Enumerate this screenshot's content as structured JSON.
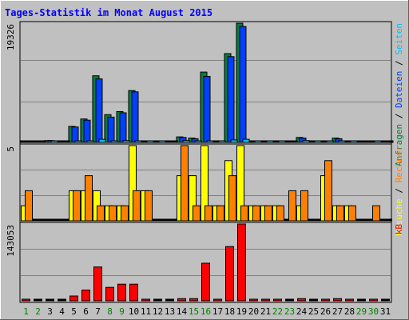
{
  "chart_data": [
    {
      "id": "top",
      "type": "bar",
      "title": "Tages-Statistik im Monat August 2015",
      "ymax_label": "19326",
      "ylim": [
        0,
        19326
      ],
      "grid": true,
      "right_label": [
        {
          "text": "Anfragen",
          "color": "#008040"
        },
        {
          "text": " / ",
          "color": "#000000"
        },
        {
          "text": "Dateien",
          "color": "#0040ff"
        },
        {
          "text": " / ",
          "color": "#000000"
        },
        {
          "text": "Seiten",
          "color": "#00c0ff"
        }
      ],
      "series": [
        {
          "name": "Anfragen",
          "color": "#008040",
          "values": [
            0,
            0,
            300,
            0,
            2600,
            3800,
            10800,
            4500,
            5000,
            8400,
            0,
            0,
            0,
            900,
            700,
            11400,
            0,
            14400,
            19326,
            0,
            0,
            0,
            0,
            800,
            0,
            0,
            700,
            0,
            0,
            0,
            0
          ]
        },
        {
          "name": "Dateien",
          "color": "#0040ff",
          "values": [
            0,
            0,
            300,
            0,
            2500,
            3600,
            10300,
            4100,
            4800,
            8200,
            0,
            0,
            0,
            800,
            600,
            10700,
            0,
            13900,
            18800,
            0,
            0,
            0,
            0,
            700,
            0,
            0,
            600,
            0,
            0,
            0,
            0
          ]
        },
        {
          "name": "Seiten",
          "color": "#00c0ff",
          "values": [
            0,
            0,
            220,
            0,
            150,
            200,
            500,
            180,
            300,
            200,
            120,
            120,
            0,
            300,
            200,
            200,
            160,
            400,
            500,
            160,
            150,
            150,
            0,
            300,
            150,
            150,
            250,
            150,
            0,
            150,
            0
          ]
        }
      ]
    },
    {
      "id": "mid",
      "type": "bar",
      "ymax_label": "5",
      "ylim": [
        0,
        5
      ],
      "grid": true,
      "right_label": [
        {
          "text": "Besuche",
          "color": "#ffff00"
        },
        {
          "text": " / ",
          "color": "#000000"
        },
        {
          "text": "Rechner",
          "color": "#ff8000"
        }
      ],
      "series": [
        {
          "name": "Besuche",
          "color": "#ffff00",
          "values": [
            1,
            0,
            0,
            0,
            2,
            2,
            2,
            1,
            1,
            5,
            2,
            0,
            0,
            3,
            3,
            5,
            1,
            4,
            5,
            1,
            1,
            1,
            0,
            1,
            0,
            3,
            1,
            1,
            0,
            0,
            0
          ]
        },
        {
          "name": "Rechner",
          "color": "#ff8000",
          "values": [
            2,
            0,
            0,
            0,
            2,
            3,
            1,
            1,
            1,
            2,
            2,
            0,
            0,
            5,
            1,
            1,
            1,
            3,
            1,
            1,
            1,
            1,
            2,
            2,
            0,
            4,
            1,
            1,
            0,
            1,
            0
          ]
        }
      ]
    },
    {
      "id": "bot",
      "type": "bar",
      "ymax_label": "143053",
      "ylim": [
        0,
        143053
      ],
      "grid": true,
      "right_label": [
        {
          "text": "kB",
          "color": "#ff0000"
        }
      ],
      "series": [
        {
          "name": "kB",
          "color": "#ff0000",
          "values": [
            3000,
            0,
            0,
            0,
            9000,
            20000,
            63000,
            25000,
            31000,
            31000,
            3000,
            0,
            0,
            4000,
            4000,
            70000,
            3000,
            101000,
            143053,
            3000,
            3000,
            3000,
            0,
            4000,
            0,
            3000,
            4000,
            3000,
            0,
            3000,
            0
          ]
        }
      ]
    }
  ],
  "days": [
    {
      "label": "1",
      "color": "#008000"
    },
    {
      "label": "2",
      "color": "#008000"
    },
    {
      "label": "3",
      "color": "#000000"
    },
    {
      "label": "4",
      "color": "#000000"
    },
    {
      "label": "5",
      "color": "#000000"
    },
    {
      "label": "6",
      "color": "#000000"
    },
    {
      "label": "7",
      "color": "#000000"
    },
    {
      "label": "8",
      "color": "#008000"
    },
    {
      "label": "9",
      "color": "#008000"
    },
    {
      "label": "10",
      "color": "#000000"
    },
    {
      "label": "11",
      "color": "#000000"
    },
    {
      "label": "12",
      "color": "#000000"
    },
    {
      "label": "13",
      "color": "#000000"
    },
    {
      "label": "14",
      "color": "#000000"
    },
    {
      "label": "15",
      "color": "#008000"
    },
    {
      "label": "16",
      "color": "#008000"
    },
    {
      "label": "17",
      "color": "#000000"
    },
    {
      "label": "18",
      "color": "#000000"
    },
    {
      "label": "19",
      "color": "#000000"
    },
    {
      "label": "20",
      "color": "#000000"
    },
    {
      "label": "21",
      "color": "#000000"
    },
    {
      "label": "22",
      "color": "#008000"
    },
    {
      "label": "23",
      "color": "#008000"
    },
    {
      "label": "24",
      "color": "#000000"
    },
    {
      "label": "25",
      "color": "#000000"
    },
    {
      "label": "26",
      "color": "#000000"
    },
    {
      "label": "27",
      "color": "#000000"
    },
    {
      "label": "28",
      "color": "#000000"
    },
    {
      "label": "29",
      "color": "#008000"
    },
    {
      "label": "30",
      "color": "#008000"
    },
    {
      "label": "31",
      "color": "#000000"
    }
  ],
  "colors": {
    "frame_bg": "#c0c0c0",
    "title": "#0000ff",
    "grid": "#808080"
  }
}
